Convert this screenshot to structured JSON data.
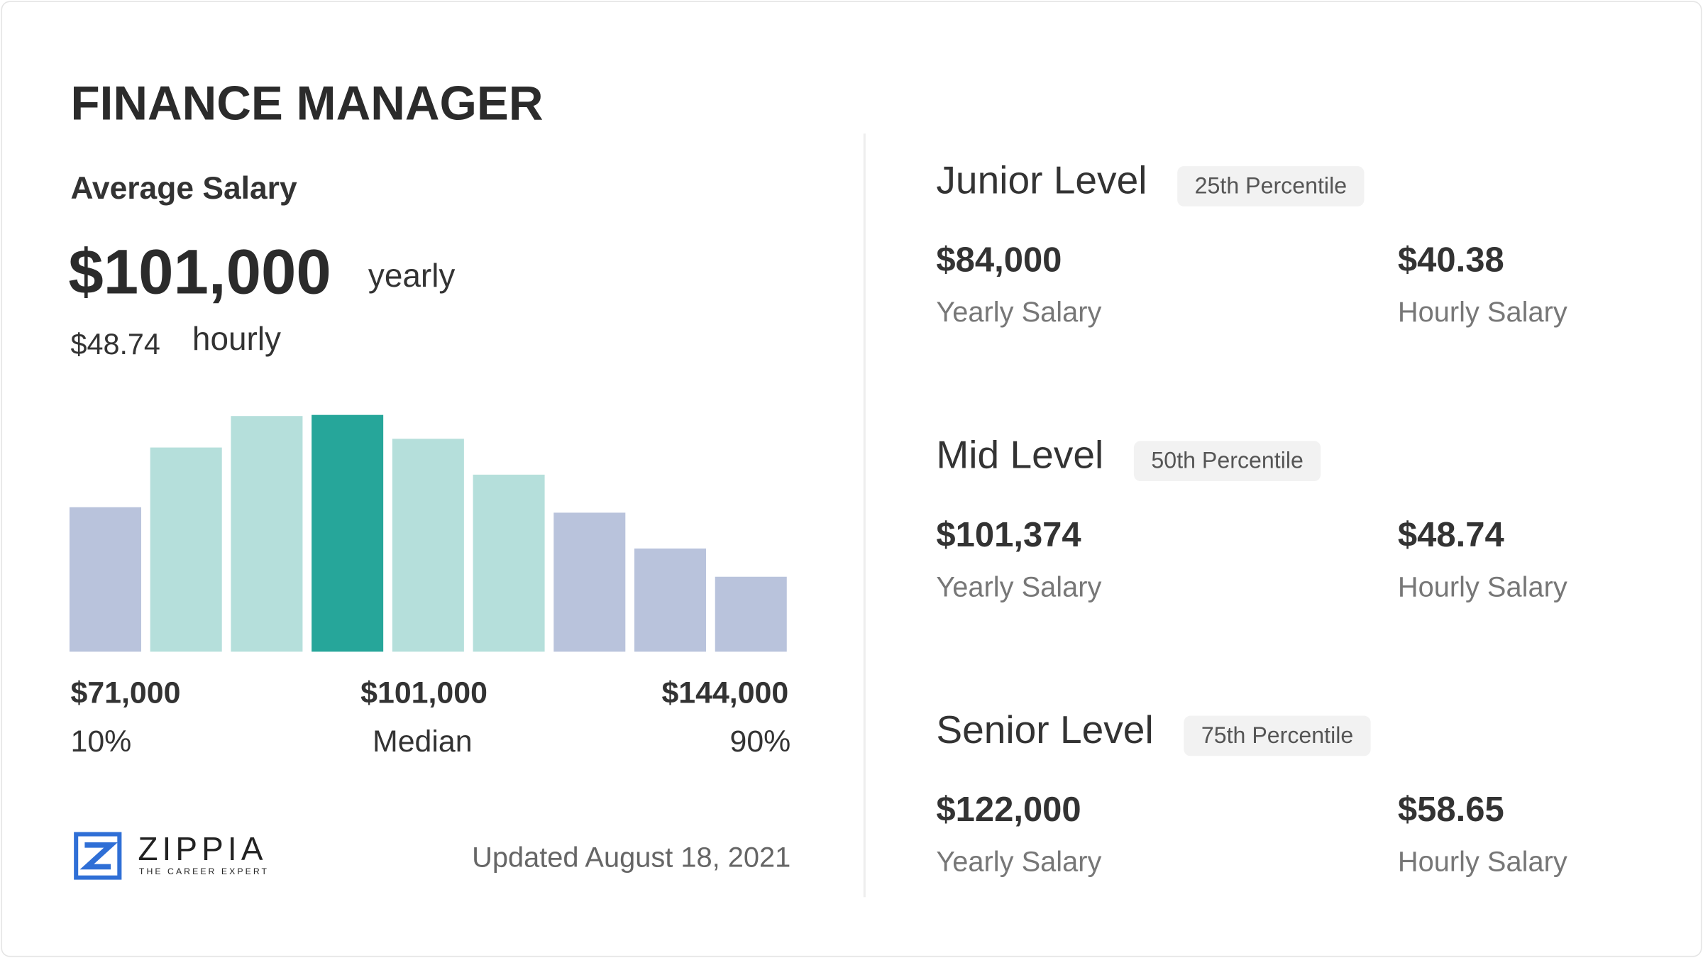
{
  "title": "FINANCE MANAGER",
  "average": {
    "label": "Average Salary",
    "yearly": "$101,000",
    "yearly_unit": "yearly",
    "hourly": "$48.74",
    "hourly_unit": "hourly"
  },
  "chart_data": {
    "type": "bar",
    "values": [
      133,
      188,
      217,
      218,
      196,
      163,
      128,
      95,
      69
    ],
    "colors": [
      "#b9c3dc",
      "#b5dfdb",
      "#b5dfdb",
      "#26a69a",
      "#b5dfdb",
      "#b5dfdb",
      "#b9c3dc",
      "#b9c3dc",
      "#b9c3dc"
    ]
  },
  "range": {
    "low": "$71,000",
    "low_label": "10%",
    "median": "$101,000",
    "median_label": "Median",
    "high": "$144,000",
    "high_label": "90%"
  },
  "logo": {
    "name": "ZIPPIA",
    "tagline": "THE CAREER EXPERT"
  },
  "updated": "Updated August 18, 2021",
  "levels": [
    {
      "name": "Junior Level",
      "percentile": "25th Percentile",
      "yearly": "$84,000",
      "yearly_label": "Yearly Salary",
      "hourly": "$40.38",
      "hourly_label": "Hourly Salary"
    },
    {
      "name": "Mid Level",
      "percentile": "50th Percentile",
      "yearly": "$101,374",
      "yearly_label": "Yearly Salary",
      "hourly": "$48.74",
      "hourly_label": "Hourly Salary"
    },
    {
      "name": "Senior Level",
      "percentile": "75th Percentile",
      "yearly": "$122,000",
      "yearly_label": "Yearly Salary",
      "hourly": "$58.65",
      "hourly_label": "Hourly Salary"
    }
  ]
}
